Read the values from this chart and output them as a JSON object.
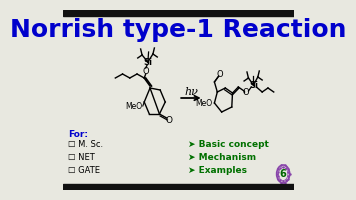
{
  "title": "Norrish type-1 Reaction",
  "title_color": "#0000CC",
  "title_fontsize": 18,
  "background_color": "#E8E8E0",
  "top_bar_color": "#111111",
  "bottom_bar_color": "#111111",
  "for_label": "For:",
  "for_color": "#0000CC",
  "checkboxes": [
    "☐ M. Sc.",
    "☐ NET",
    "☐ GATE"
  ],
  "checkbox_color": "#000000",
  "bullets": [
    "➤ Basic concept",
    "➤ Mechanism",
    "➤ Examples"
  ],
  "bullet_color": "#007000",
  "hv_label": "hν",
  "logo_color": "#8844AA",
  "logo_text_color": "#006600",
  "logo_number": "6"
}
